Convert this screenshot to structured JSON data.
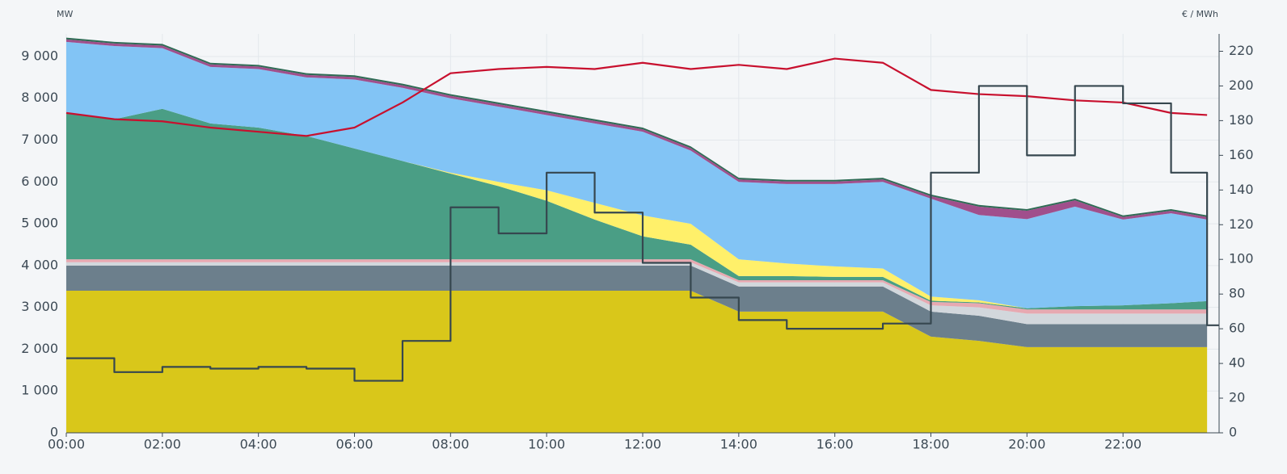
{
  "chart_data": {
    "type": "stacked_area",
    "y_label": "MW",
    "y2_label": "€ / MWh",
    "x": [
      0,
      1,
      2,
      3,
      4,
      5,
      6,
      7,
      8,
      9,
      10,
      11,
      12,
      13,
      14,
      15,
      16,
      17,
      18,
      19,
      20,
      21,
      22,
      23,
      23.75
    ],
    "xlim": [
      0,
      24
    ],
    "xticks": [
      {
        "value": 0,
        "label": "00:00"
      },
      {
        "value": 2,
        "label": "02:00"
      },
      {
        "value": 4,
        "label": "04:00"
      },
      {
        "value": 6,
        "label": "06:00"
      },
      {
        "value": 8,
        "label": "08:00"
      },
      {
        "value": 10,
        "label": "10:00"
      },
      {
        "value": 12,
        "label": "12:00"
      },
      {
        "value": 14,
        "label": "14:00"
      },
      {
        "value": 16,
        "label": "16:00"
      },
      {
        "value": 18,
        "label": "18:00"
      },
      {
        "value": 20,
        "label": "20:00"
      },
      {
        "value": 22,
        "label": "22:00"
      }
    ],
    "ylim": [
      0,
      9540
    ],
    "yticks": [
      0,
      {
        "value": 1000,
        "label": "1 000"
      },
      {
        "value": 2000,
        "label": "2 000"
      },
      {
        "value": 3000,
        "label": "3 000"
      },
      {
        "value": 4000,
        "label": "4 000"
      },
      {
        "value": 5000,
        "label": "5 000"
      },
      {
        "value": 6000,
        "label": "6 000"
      },
      {
        "value": 7000,
        "label": "7 000"
      },
      {
        "value": 8000,
        "label": "8 000"
      },
      {
        "value": 9000,
        "label": "9 000"
      }
    ],
    "y2lim": [
      0,
      230
    ],
    "y2ticks": [
      0,
      20,
      40,
      60,
      80,
      100,
      120,
      140,
      160,
      180,
      200,
      220
    ],
    "grid": true,
    "series": [
      {
        "color": "#d9c71a",
        "values": [
          3400,
          3400,
          3400,
          3400,
          3400,
          3400,
          3400,
          3400,
          3400,
          3400,
          3400,
          3400,
          3400,
          3400,
          2900,
          2900,
          2900,
          2900,
          2300,
          2200,
          2050,
          2050,
          2050,
          2050,
          2050
        ]
      },
      {
        "color": "#6c7f8c",
        "values": [
          600,
          600,
          600,
          600,
          600,
          600,
          600,
          600,
          600,
          600,
          600,
          600,
          600,
          600,
          600,
          600,
          600,
          600,
          600,
          600,
          550,
          550,
          550,
          550,
          550
        ]
      },
      {
        "color": "#d2d7dc",
        "values": [
          80,
          80,
          80,
          80,
          80,
          80,
          80,
          80,
          80,
          80,
          80,
          80,
          80,
          80,
          100,
          100,
          100,
          100,
          150,
          200,
          250,
          250,
          250,
          250,
          250
        ]
      },
      {
        "color": "#e7a9b1",
        "values": [
          70,
          70,
          70,
          70,
          70,
          70,
          70,
          70,
          70,
          70,
          70,
          70,
          70,
          70,
          50,
          50,
          50,
          50,
          80,
          100,
          100,
          100,
          100,
          100,
          100
        ]
      },
      {
        "color": "#4a9e85",
        "values": [
          3500,
          3350,
          3600,
          3250,
          3150,
          2950,
          2650,
          2350,
          2050,
          1750,
          1400,
          950,
          550,
          350,
          100,
          100,
          80,
          80,
          30,
          20,
          30,
          80,
          100,
          150,
          200
        ]
      },
      {
        "color": "#fff06a",
        "values": [
          0,
          0,
          0,
          0,
          0,
          0,
          0,
          0,
          20,
          100,
          250,
          400,
          500,
          500,
          400,
          300,
          250,
          200,
          100,
          50,
          0,
          0,
          0,
          0,
          0
        ]
      },
      {
        "color": "#82c4f5",
        "values": [
          1700,
          1750,
          1450,
          1350,
          1400,
          1400,
          1650,
          1750,
          1780,
          1800,
          1800,
          1900,
          2000,
          1750,
          1850,
          1900,
          1970,
          2070,
          2340,
          2040,
          2130,
          2380,
          2050,
          2150,
          1950
        ]
      },
      {
        "color": "#a04f8c",
        "values": [
          60,
          60,
          60,
          60,
          60,
          60,
          60,
          60,
          60,
          60,
          60,
          60,
          60,
          60,
          60,
          60,
          60,
          60,
          60,
          200,
          200,
          150,
          60,
          60,
          60
        ]
      },
      {
        "color": "#2f6b55",
        "values": [
          40,
          40,
          40,
          40,
          40,
          40,
          40,
          40,
          40,
          40,
          40,
          40,
          40,
          40,
          40,
          40,
          40,
          40,
          40,
          40,
          40,
          40,
          40,
          40,
          40
        ]
      }
    ],
    "lines": [
      {
        "color": "#c8102e",
        "values": [
          7650,
          7500,
          7450,
          7300,
          7200,
          7100,
          7300,
          7900,
          8600,
          8700,
          8750,
          8700,
          8850,
          8700,
          8800,
          8700,
          8950,
          8850,
          8200,
          8100,
          8050,
          7950,
          7900,
          7650,
          7600
        ]
      },
      {
        "color": "#36474f",
        "axis": "y2",
        "step": true,
        "values": [
          43,
          35,
          38,
          37,
          38,
          37,
          30,
          53,
          130,
          115,
          150,
          127,
          98,
          78,
          65,
          60,
          60,
          63,
          150,
          200,
          160,
          200,
          190,
          150,
          62
        ]
      }
    ]
  }
}
